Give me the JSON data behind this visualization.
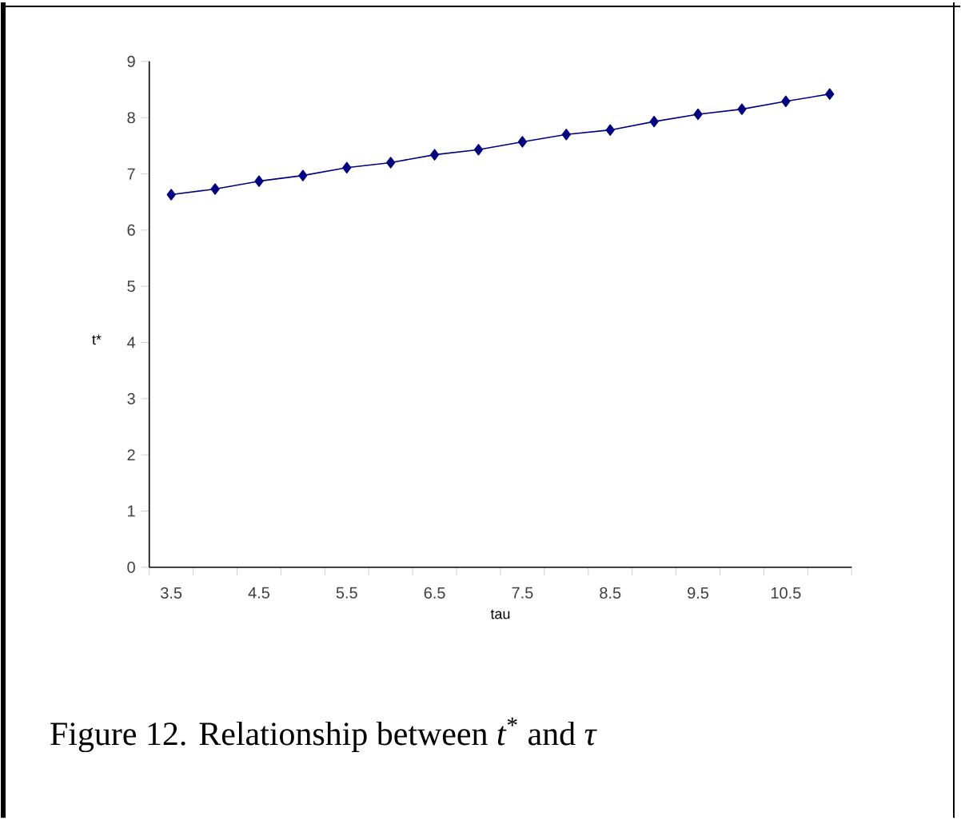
{
  "chart_data": {
    "type": "line",
    "xlabel": "tau",
    "ylabel": "t*",
    "categories": [
      "3.5",
      null,
      "4.5",
      null,
      "5.5",
      null,
      "6.5",
      null,
      "7.5",
      null,
      "8.5",
      null,
      "9.5",
      null,
      "10.5",
      null
    ],
    "series": [
      {
        "color": "#000080",
        "values": [
          6.63,
          6.73,
          6.87,
          6.97,
          7.11,
          7.2,
          7.34,
          7.43,
          7.57,
          7.7,
          7.78,
          7.93,
          8.06,
          8.15,
          8.29,
          8.42
        ]
      }
    ],
    "ylim": [
      0,
      9
    ],
    "yticks": [
      0,
      1,
      2,
      3,
      4,
      5,
      6,
      7,
      8,
      9
    ],
    "marker": "diamond",
    "line_style": "solid",
    "annotations": [
      "Figure 12. Relationship between *t*$^{*}$ and *τ*"
    ]
  }
}
